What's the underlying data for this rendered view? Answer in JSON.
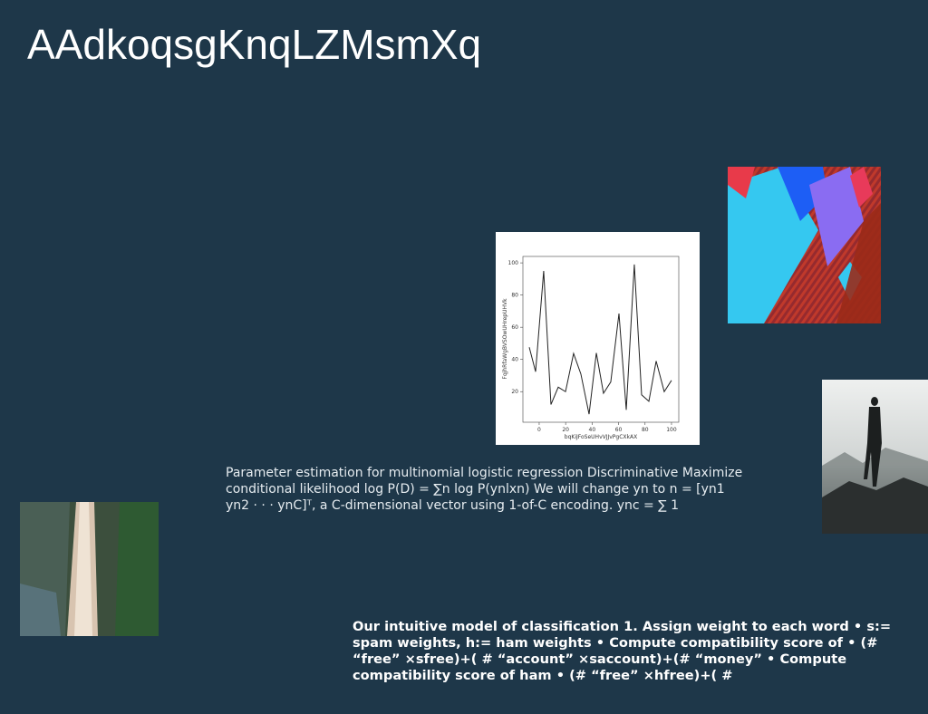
{
  "title": "AAdkoqsgKnqLZMsmXq",
  "paragraph_1": "Parameter estimation for multinomial logistic regression Discriminative Maximize conditional likelihood log P(D) = ∑n log P(ynlxn) We will change yn to n = [yn1 yn2 · · · ynC]ᵀ, a C-dimensional vector using 1-of-C encoding. ync = ∑ 1",
  "paragraph_2": "Our intuitive model of classification 1. Assign weight to each word • s:= spam weights, h:= ham weights • Compute compatibility score of • (# “free” ×sfree)+( # “account” ×saccount)+(# “money” • Compute compatibility score of ham • (# “free” ×hfree)+( #",
  "chart_data": {
    "type": "line",
    "xlabel": "bqKiJFoSeUHvVJJvPgCXkAX",
    "ylabel": "FqjhRfaWgBVSOwUHrepUHVk",
    "x": [
      -7.5,
      -2.7,
      3.4,
      8.9,
      14.4,
      19.9,
      26,
      31.5,
      37.7,
      43.2,
      48.6,
      54.1,
      60.3,
      65.8,
      71.9,
      77.4,
      82.9,
      88.4,
      94.5,
      100
    ],
    "series": [
      {
        "color": "#222222",
        "values": [
          47.6,
          32.4,
          95,
          12,
          22.8,
          20,
          43.7,
          31,
          6,
          44,
          19,
          26,
          68.5,
          8.7,
          99,
          18,
          14,
          39,
          20,
          27
        ]
      }
    ],
    "xlim": [
      -12.3,
      105.5
    ],
    "xticks": [
      0,
      20,
      40,
      60,
      80,
      100
    ],
    "ylim": [
      1,
      104
    ],
    "yticks": [
      20,
      40,
      60,
      80,
      100
    ]
  }
}
